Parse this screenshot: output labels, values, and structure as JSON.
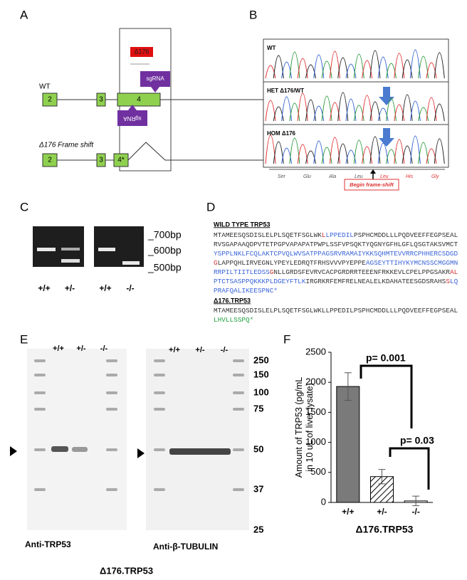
{
  "panel_labels": [
    "A",
    "B",
    "C",
    "D",
    "E",
    "F"
  ],
  "panel_a": {
    "deletion_label": "Δ176",
    "wt_label": "WT",
    "sgrna_labels": [
      "sgRNA",
      "sgRNA"
    ],
    "exons_wt": [
      "2",
      "3",
      "4"
    ],
    "frameshift_label": "Δ176 Frame shift",
    "exons_mut": [
      "2",
      "3",
      "4*"
    ]
  },
  "panel_b": {
    "rows": [
      "WT",
      "HET Δ176/WT",
      "HOM Δ176"
    ],
    "amino_acids": [
      {
        "text": "Ser",
        "color": "#555555"
      },
      {
        "text": "Glu",
        "color": "#555555"
      },
      {
        "text": "Ala",
        "color": "#555555"
      },
      {
        "text": "Leu",
        "color": "#555555"
      },
      {
        "text": "Leu",
        "color": "#e53030"
      },
      {
        "text": "His",
        "color": "#e53030"
      },
      {
        "text": "Gly",
        "color": "#e53030"
      }
    ],
    "frameshift_note": "Begin frame-shift"
  },
  "panel_c": {
    "sizes": [
      "_700bp",
      "_600bp",
      "_500bp"
    ],
    "lanes": [
      "+/+",
      "+/-",
      "+/+",
      "-/-"
    ]
  },
  "panel_d": {
    "wild_type": {
      "title": "WILD TYPE TRP53",
      "lines": [
        [
          {
            "text": "MTAMEESQSDISLELPLSQETFSGLWK",
            "color": "#333333"
          },
          {
            "text": "L",
            "color": "#d03030"
          },
          {
            "text": "LPPEDIL",
            "color": "#3a64d8"
          },
          {
            "text": "PSPHCMDDLLLPQDVEEFFEGPSEAL",
            "color": "#333333"
          }
        ],
        [
          {
            "text": "RVSGAPAAQDPVTETPGPVAPAPATPWPLSSFVPSQKTYQGNYGFHLGFLQSGTAKSVMCT",
            "color": "#333333"
          }
        ],
        [
          {
            "text": "YSPPLNKLFCQLAKTCPVQLWVSATPPAGSRVRAMAIYKKSQHMTEVVRRCPHHERCSDGD",
            "color": "#3a64d8"
          }
        ],
        [
          {
            "text": "G",
            "color": "#d03030"
          },
          {
            "text": "LAPPQHLIRVEGNLYPEYLEDRQTFRHSVVVPYEPPE",
            "color": "#333333"
          },
          {
            "text": "AGSEYTTIHYKYMCNSSCMGGMN",
            "color": "#3a64d8"
          }
        ],
        [
          {
            "text": "RRPILTIITLEDSS",
            "color": "#3a64d8"
          },
          {
            "text": "G",
            "color": "#d03030"
          },
          {
            "text": "NLLGRDSFEVRVCACPGRDRRTEEENFRKKEVLCPELPPGSAKR",
            "color": "#333333"
          },
          {
            "text": "AL",
            "color": "#d03030"
          }
        ],
        [
          {
            "text": "PTCTSASPPQKKKPLDGEYFTLK",
            "color": "#3a64d8"
          },
          {
            "text": "IRGRKRFEMFRELNEALELKDAHATEESGDSRAHS",
            "color": "#333333"
          },
          {
            "text": "S",
            "color": "#d03030"
          },
          {
            "text": "LQ",
            "color": "#3a64d8"
          }
        ],
        [
          {
            "text": "PRAFQALIKEESPNC*",
            "color": "#3a64d8"
          }
        ]
      ]
    },
    "mutant": {
      "title": "Δ176.TRP53",
      "lines": [
        [
          {
            "text": "MTAMEESQSDISLELPLSQETFSGLWKLLPPEDILPSPHCMDDLLLPQDVEEFFEGPSEAL",
            "color": "#333333"
          }
        ],
        [
          {
            "text": "LHVLLSSPQ*",
            "color": "#22a040"
          }
        ]
      ]
    }
  },
  "panel_e": {
    "lanes_left": [
      "+/+",
      "+/-",
      "-/-"
    ],
    "lanes_right": [
      "+/+",
      "+/-",
      "-/-"
    ],
    "markers": [
      "250",
      "150",
      "100",
      "75",
      "50",
      "37",
      "25"
    ],
    "left_caption": "Anti-TRP53",
    "right_caption": "Anti-β-TUBULIN",
    "genotype": "Δ176.TRP53"
  },
  "chart_data": {
    "type": "bar",
    "y_label": [
      "Amount of TRP53 (pg/mL",
      "in 10 uL of liver lysate)"
    ],
    "x_label": "Δ176.TRP53",
    "categories": [
      "+/+",
      "+/-",
      "-/-"
    ],
    "values": [
      1930,
      430,
      25
    ],
    "errors": [
      230,
      120,
      80
    ],
    "colors": [
      "#7a7a7a",
      "#ffffff",
      "#ffffff"
    ],
    "hatch": [
      false,
      true,
      false
    ],
    "ylim": [
      0,
      2500
    ],
    "yticks": [
      0,
      500,
      1000,
      1500,
      2000,
      2500
    ],
    "annotations": [
      "p= 0.001",
      "p= 0.03"
    ]
  }
}
